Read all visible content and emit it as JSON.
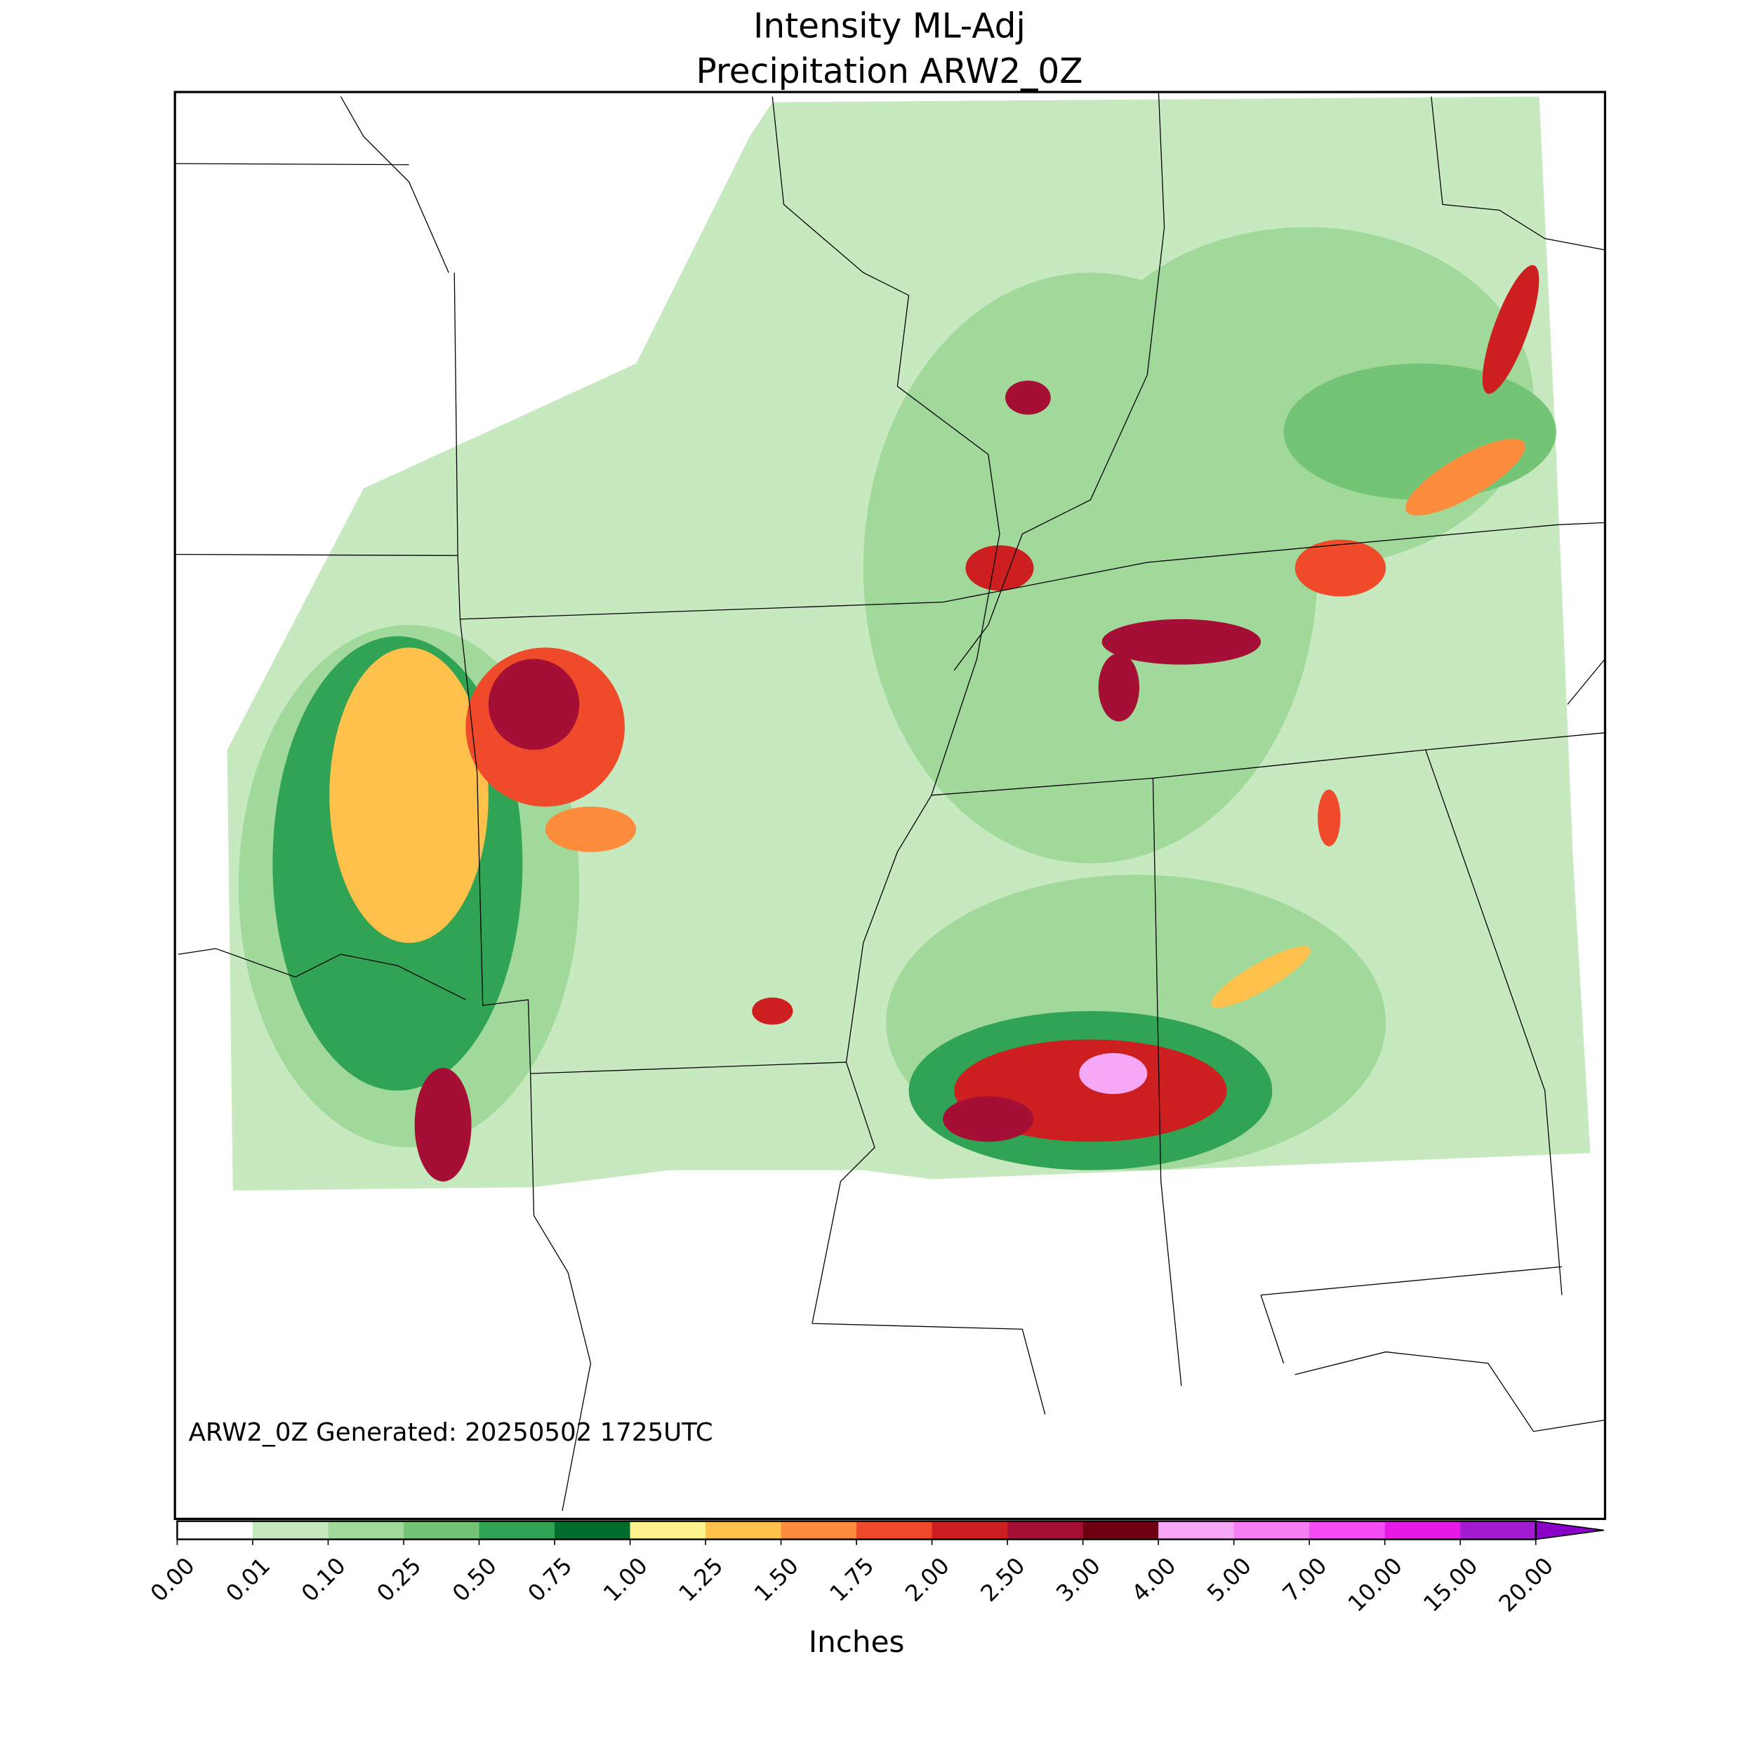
{
  "title": [
    "Intensity ML-Adj",
    "Precipitation ARW2_0Z"
  ],
  "annotation": "ARW2_0Z Generated: 20250502 1725UTC",
  "colorbar": {
    "label": "Inches",
    "ticks": [
      {
        "value": 0,
        "label": "0.00"
      },
      {
        "value": 0.01,
        "label": "0.01"
      },
      {
        "value": 0.1,
        "label": "0.10"
      },
      {
        "value": 0.25,
        "label": "0.25"
      },
      {
        "value": 0.5,
        "label": "0.50"
      },
      {
        "value": 0.75,
        "label": "0.75"
      },
      {
        "value": 1,
        "label": "1.00"
      },
      {
        "value": 1.25,
        "label": "1.25"
      },
      {
        "value": 1.5,
        "label": "1.50"
      },
      {
        "value": 1.75,
        "label": "1.75"
      },
      {
        "value": 2,
        "label": "2.00"
      },
      {
        "value": 2.5,
        "label": "2.50"
      },
      {
        "value": 3,
        "label": "3.00"
      },
      {
        "value": 4,
        "label": "4.00"
      },
      {
        "value": 5,
        "label": "5.00"
      },
      {
        "value": 7,
        "label": "7.00"
      },
      {
        "value": 10,
        "label": "10.00"
      },
      {
        "value": 15,
        "label": "15.00"
      },
      {
        "value": 20,
        "label": "20.00"
      }
    ],
    "colors": [
      "#ffffff",
      "#c7e9c0",
      "#a1d99b",
      "#74c476",
      "#31a354",
      "#006d2c",
      "#fff38f",
      "#fdc14c",
      "#fd8d3c",
      "#ef4a2a",
      "#cd1f1f",
      "#a50f35",
      "#6d0011",
      "#f6a8f6",
      "#f57ef5",
      "#f24cf2",
      "#e61ae6",
      "#a21ccf"
    ],
    "extend_color": "#8a00c8"
  }
}
